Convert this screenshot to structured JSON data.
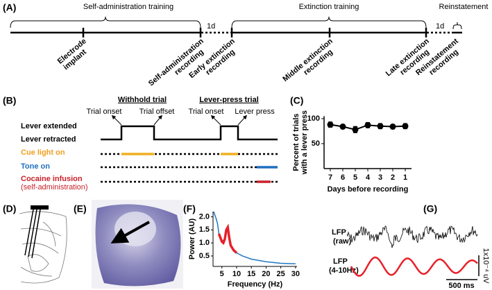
{
  "panel_labels": [
    "(A)",
    "(B)",
    "(C)",
    "(D)",
    "(E)",
    "(F)",
    "(G)"
  ],
  "timeline": {
    "phases": [
      "Self-administration training",
      "Extinction training",
      "Reinstatement"
    ],
    "gaps": [
      "1d",
      "1d"
    ],
    "events": [
      [
        "Electrode",
        "implant"
      ],
      [
        "Self-administration",
        "recording"
      ],
      [
        "Early extinction",
        "recording"
      ],
      [
        "Middle extinction",
        "recording"
      ],
      [
        "Late extinction",
        "recording"
      ],
      [
        "Reinstatement",
        "recording"
      ]
    ]
  },
  "trials": {
    "withhold": "Withhold trial",
    "lever_press": "Lever-press trial",
    "annotations": [
      "Trial onset",
      "Trial offset",
      "Trial onset",
      "Lever press"
    ],
    "rows": [
      "Lever extended",
      "Lever retracted",
      "Cue light on",
      "Tone on",
      "Cocaine infusion",
      "(self-administration)"
    ]
  },
  "chart_data": [
    {
      "type": "line",
      "xlabel": "Days before recording",
      "ylabel": [
        "Percent of trials",
        "with a lever press"
      ],
      "categories": [
        "7",
        "6",
        "5",
        "4",
        "3",
        "2",
        "1"
      ],
      "series": [
        {
          "color": "#000000",
          "values": [
            88,
            84,
            78,
            87,
            85,
            84,
            85
          ],
          "errors": [
            5,
            4,
            6,
            5,
            5,
            4,
            5
          ]
        }
      ],
      "ylim": [
        0,
        105
      ],
      "yticks": [
        50,
        100
      ]
    },
    {
      "type": "line",
      "xlabel": "Frequency (Hz)",
      "ylabel": "Power (AU)",
      "xlim": [
        2,
        30.5
      ],
      "ylim": [
        0.1,
        2.2
      ],
      "xticks": [
        5,
        10,
        15,
        20,
        25,
        30
      ],
      "yticks": [
        0.5,
        {
          "value": 1,
          "label": "1.0"
        },
        1.5,
        {
          "value": 2,
          "label": "2.0"
        }
      ],
      "series": [
        {
          "color": "#1f77c4",
          "x": [
            2.2,
            3,
            3.5,
            4,
            5,
            6,
            7,
            8,
            9,
            10,
            12,
            15,
            20,
            25,
            30
          ],
          "values": [
            2.2,
            1.95,
            1.75,
            1.35,
            1.05,
            1.15,
            1.6,
            0.9,
            0.72,
            0.62,
            0.5,
            0.38,
            0.28,
            0.22,
            0.2
          ]
        },
        {
          "color": "#e8202a",
          "x": [
            4,
            4.5,
            5,
            5.5,
            6,
            6.5,
            7,
            7.5,
            8,
            9,
            10
          ],
          "values": [
            1.35,
            1.2,
            1.05,
            1.0,
            1.15,
            1.5,
            1.6,
            1.2,
            0.9,
            0.72,
            0.62
          ]
        }
      ]
    }
  ],
  "lfp": {
    "labels": [
      [
        "LFP",
        "(raw)"
      ],
      [
        "LFP",
        "(4-10Hz)"
      ]
    ],
    "scale_y": "1x10⁻⁴ uV",
    "scale_x": "500 ms"
  }
}
